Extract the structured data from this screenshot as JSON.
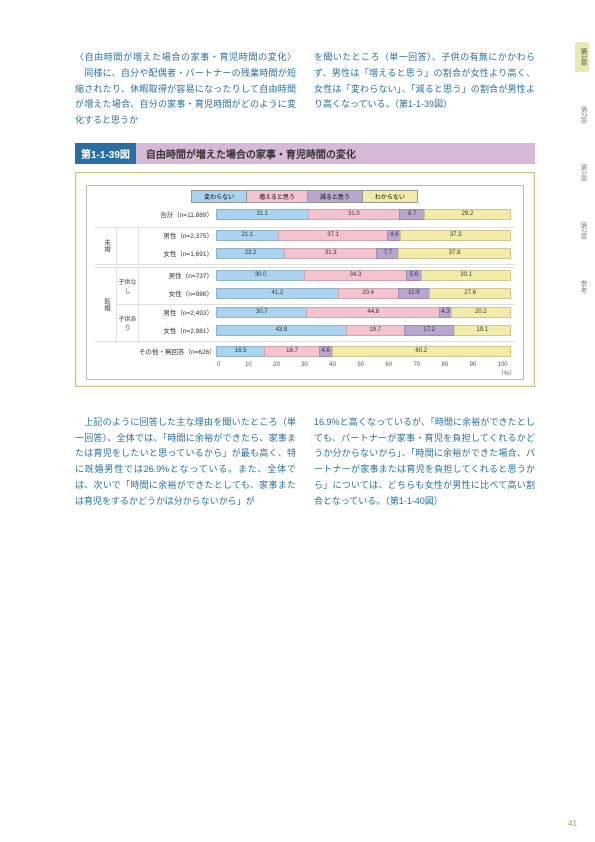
{
  "sideTabs": [
    "第1章",
    "第2章",
    "第1章",
    "第2章",
    "参考"
  ],
  "sideTabActiveIndex": 0,
  "textTop": {
    "left": "〈自由時間が増えた場合の家事・育児時間の変化〉\n　同様に、自分や配偶者・パートナーの残業時間が短縮されたり、休暇取得が容易になったりして自由時間が増えた場合、自分の家事・育児時間がどのように変化すると思うか",
    "right": "を聞いたところ（単一回答）、子供の有無にかかわらず、男性は「増えると思う」の割合が女性より高く、女性は「変わらない」、「減ると思う」の割合が男性より高くなっている。（第1-1-39図）"
  },
  "figure": {
    "label": "第1-1-39図",
    "title": "自由時間が増えた場合の家事・育児時間の変化"
  },
  "legend": [
    {
      "label": "変わらない",
      "color": "#a9d3ef"
    },
    {
      "label": "増えると思う",
      "color": "#f5c3cf"
    },
    {
      "label": "減ると思う",
      "color": "#b9a6cf"
    },
    {
      "label": "わからない",
      "color": "#f3eca8"
    }
  ],
  "chart": {
    "rows": [
      {
        "cat": "",
        "sub": "",
        "label": "合計（n=11,889）",
        "vals": [
          31.1,
          31.0,
          8.7,
          29.2
        ]
      }
    ],
    "groups": [
      {
        "cat": "未婚",
        "subs": [
          {
            "name": "",
            "rows": [
              {
                "label": "男性（n=2,375）",
                "vals": [
                  21.1,
                  37.1,
                  4.6,
                  37.3
                ]
              },
              {
                "label": "女性（n=1,691）",
                "vals": [
                  23.2,
                  31.3,
                  7.7,
                  37.8
                ]
              }
            ]
          }
        ]
      },
      {
        "cat": "既婚",
        "subs": [
          {
            "name": "子供なし",
            "rows": [
              {
                "label": "男性（n=737）",
                "vals": [
                  30.0,
                  34.3,
                  5.6,
                  30.1
                ]
              },
              {
                "label": "女性（n=986）",
                "vals": [
                  41.2,
                  20.4,
                  10.9,
                  27.6
                ]
              }
            ]
          },
          {
            "name": "子供あり",
            "rows": [
              {
                "label": "男性（n=2,493）",
                "vals": [
                  30.7,
                  44.8,
                  4.3,
                  20.2
                ]
              },
              {
                "label": "女性（n=2,981）",
                "vals": [
                  43.9,
                  19.7,
                  17.2,
                  19.1
                ]
              }
            ]
          }
        ]
      }
    ],
    "lastRow": {
      "label": "その他・無回答（n=626）",
      "vals": [
        16.5,
        18.7,
        4.6,
        60.2
      ]
    },
    "axisMax": 100,
    "axisStep": 10,
    "axisSuffix": "（%）"
  },
  "textBottom": {
    "left": "　上記のように回答した主な理由を聞いたところ（単一回答）、全体では、「時間に余裕ができたら、家事または育児をしたいと思っているから」が最も高く、特に既婚男性では26.9%となっている。また、全体では、次いで「時間に余裕ができたとしても、家事または育児をするかどうかは分からないから」が",
    "right": "16.9%と高くなっているが、「時間に余裕ができたとしても、パートナーが家事・育児を負担してくれるかどうか分からないから」、「時間に余裕ができた場合、パートナーが家事または育児を負担してくれると思うから」については、どちらも女性が男性に比べて高い割合となっている。（第1-1-40図）"
  },
  "pageNumber": "41"
}
